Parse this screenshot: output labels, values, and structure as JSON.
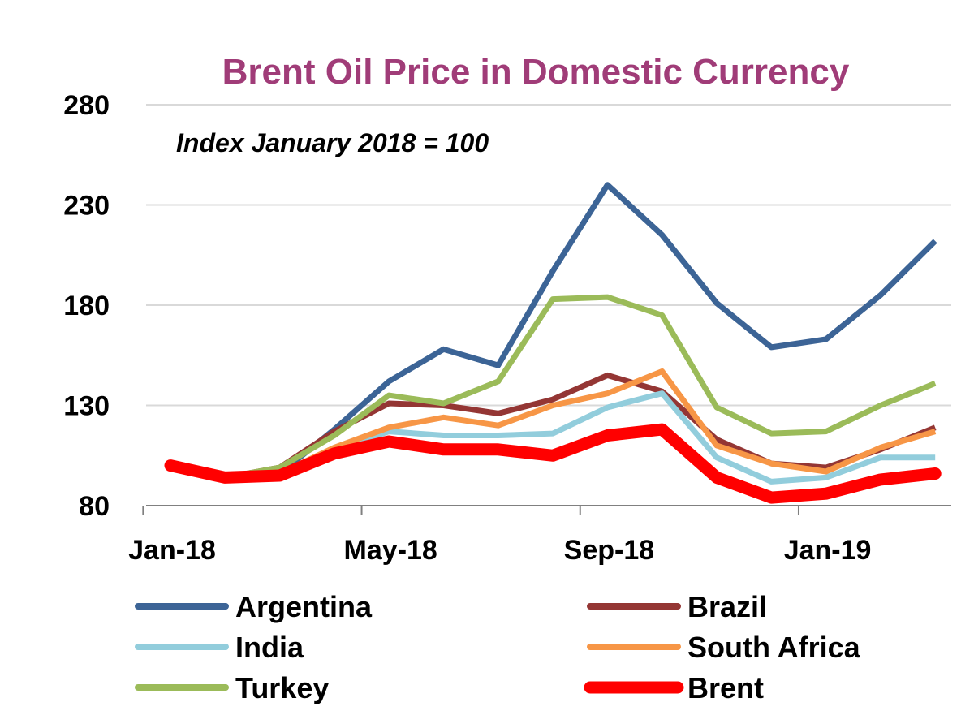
{
  "chart_data": {
    "type": "line",
    "title": "Brent Oil Price in Domestic Currency",
    "subtitle": "Index January 2018 = 100",
    "xlabel": "",
    "ylabel": "",
    "ylim": [
      80,
      280
    ],
    "yticks": [
      80,
      130,
      180,
      230,
      280
    ],
    "x": [
      "Jan-18",
      "Feb-18",
      "Mar-18",
      "Apr-18",
      "May-18",
      "Jun-18",
      "Jul-18",
      "Aug-18",
      "Sep-18",
      "Oct-18",
      "Nov-18",
      "Dec-18",
      "Jan-19",
      "Feb-19",
      "Mar-19"
    ],
    "xtick_labels": [
      "Jan-18",
      "May-18",
      "Sep-18",
      "Jan-19"
    ],
    "grid": "horizontal",
    "legend_position": "bottom",
    "title_color": "#a03c78",
    "series": [
      {
        "name": "Argentina",
        "color": "#3c6496",
        "values": [
          100,
          94,
          96,
          118,
          142,
          158,
          150,
          197,
          240,
          215,
          181,
          159,
          163,
          185,
          212
        ]
      },
      {
        "name": "Brazil",
        "color": "#943634",
        "values": [
          100,
          94,
          99,
          117,
          131,
          130,
          126,
          133,
          145,
          137,
          113,
          101,
          99,
          108,
          119
        ]
      },
      {
        "name": "India",
        "color": "#92cddc",
        "values": [
          100,
          94,
          96,
          108,
          117,
          115,
          115,
          116,
          129,
          136,
          104,
          92,
          94,
          104,
          104
        ]
      },
      {
        "name": "South Africa",
        "color": "#f79646",
        "values": [
          100,
          94,
          96,
          109,
          119,
          124,
          120,
          130,
          136,
          147,
          110,
          101,
          97,
          109,
          117
        ]
      },
      {
        "name": "Turkey",
        "color": "#9bbb59",
        "values": [
          100,
          94,
          99,
          115,
          135,
          131,
          142,
          183,
          184,
          175,
          129,
          116,
          117,
          130,
          141
        ]
      },
      {
        "name": "Brent",
        "color": "#ff0000",
        "values": [
          100,
          94,
          95,
          106,
          112,
          108,
          108,
          105,
          115,
          118,
          94,
          84,
          86,
          93,
          96
        ]
      }
    ]
  }
}
